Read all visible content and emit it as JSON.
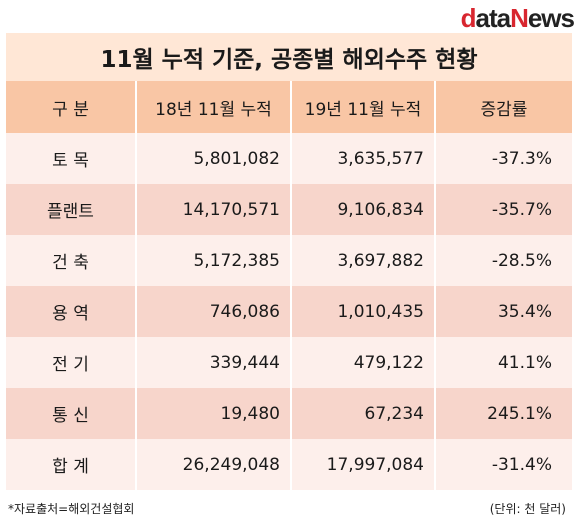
{
  "logo": {
    "d": "d",
    "ata": "ata",
    "n": "N",
    "ews": "ews"
  },
  "title": "11월 누적 기준, 공종별 해외수주 현황",
  "table": {
    "headers": [
      "구  분",
      "18년 11월 누적",
      "19년 11월 누적",
      "증감률"
    ],
    "rows": [
      {
        "category": "토  목",
        "y2018": "5,801,082",
        "y2019": "3,635,577",
        "change": "-37.3%"
      },
      {
        "category": "플랜트",
        "y2018": "14,170,571",
        "y2019": "9,106,834",
        "change": "-35.7%"
      },
      {
        "category": "건  축",
        "y2018": "5,172,385",
        "y2019": "3,697,882",
        "change": "-28.5%"
      },
      {
        "category": "용  역",
        "y2018": "746,086",
        "y2019": "1,010,435",
        "change": "35.4%"
      },
      {
        "category": "전  기",
        "y2018": "339,444",
        "y2019": "479,122",
        "change": "41.1%"
      },
      {
        "category": "통  신",
        "y2018": "19,480",
        "y2019": "67,234",
        "change": "245.1%"
      },
      {
        "category": "합  계",
        "y2018": "26,249,048",
        "y2019": "17,997,084",
        "change": "-31.4%"
      }
    ]
  },
  "footer": {
    "source": "*자료출처=해외건설협회",
    "unit": "(단위: 천 달러)"
  },
  "colors": {
    "header_bg": "#f9c6a5",
    "title_bg": "#ffe7d6",
    "row_light": "#fdefeb",
    "row_dark": "#f7d5cb",
    "logo_red": "#d8262f"
  }
}
